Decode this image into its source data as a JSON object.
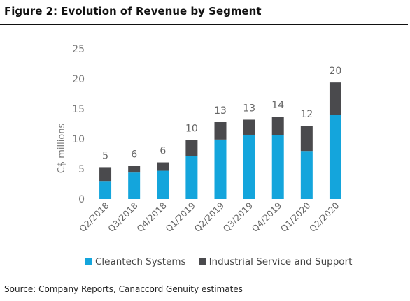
{
  "figure": {
    "title": "Figure 2: Evolution of Revenue by Segment",
    "source": "Source: Company Reports, Canaccord Genuity estimates"
  },
  "chart_data": {
    "type": "bar",
    "stacked": true,
    "categories": [
      "Q2/2018",
      "Q3/2018",
      "Q4/2018",
      "Q1/2019",
      "Q2/2019",
      "Q3/2019",
      "Q4/2019",
      "Q1/2020",
      "Q2/2020"
    ],
    "series": [
      {
        "name": "Cleantech Systems",
        "color": "#14a5dc",
        "values": [
          3.0,
          4.4,
          4.7,
          7.2,
          9.9,
          10.7,
          10.6,
          8.0,
          14.0
        ]
      },
      {
        "name": "Industrial Service and Support",
        "color": "#4a4a4d",
        "values": [
          2.3,
          1.1,
          1.4,
          2.6,
          2.9,
          2.5,
          3.1,
          4.2,
          5.4
        ]
      }
    ],
    "totals_labels": [
      "5",
      "6",
      "6",
      "10",
      "13",
      "13",
      "14",
      "12",
      "20"
    ],
    "ylabel": "C$ millions",
    "ylim": [
      0,
      25
    ],
    "yticks": [
      0,
      5,
      10,
      15,
      20,
      25
    ],
    "grid": false,
    "legend_position": "bottom"
  }
}
